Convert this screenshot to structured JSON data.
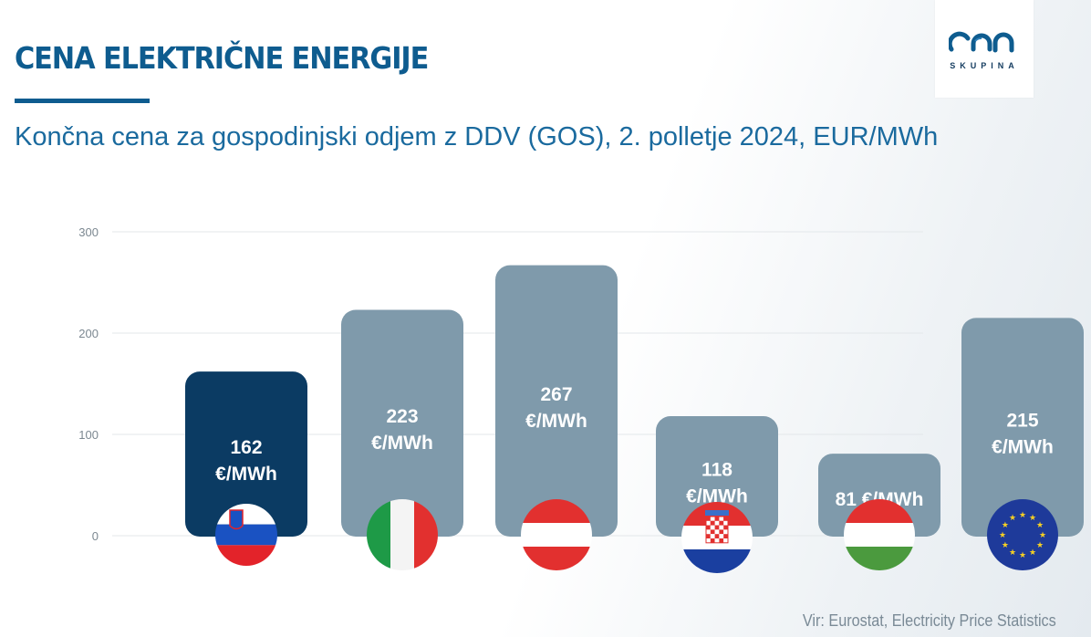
{
  "header": {
    "title": "CENA ELEKTRIČNE ENERGIJE",
    "subtitle": "Končna cena za gospodinjski odjem z DDV (GOS), 2. polletje 2024, EUR/MWh"
  },
  "logo": {
    "mark": "cen",
    "text": "SKUPINA",
    "color": "#0e5c8f"
  },
  "source": "Vir: Eurostat, Electricity Price Statistics",
  "colors": {
    "highlight_bar": "#0b3b63",
    "bar": "#7f9aab",
    "grid": "#e3e7ea",
    "tick": "#7c8891"
  },
  "chart_data": {
    "type": "bar",
    "categories": [
      "Slovenia",
      "Italy",
      "Austria",
      "Croatia",
      "Hungary",
      "EU"
    ],
    "values": [
      162,
      223,
      267,
      118,
      81,
      215
    ],
    "labels": [
      [
        "162",
        "€/MWh"
      ],
      [
        "223",
        "€/MWh"
      ],
      [
        "267",
        "€/MWh"
      ],
      [
        "118",
        "€/MWh"
      ],
      [
        "81 €/MWh"
      ],
      [
        "215",
        "€/MWh"
      ]
    ],
    "flag_icons": [
      "slovenia-flag-icon",
      "italy-flag-icon",
      "austria-flag-icon",
      "croatia-flag-icon",
      "hungary-flag-icon",
      "eu-flag-icon"
    ],
    "highlight_index": 0,
    "yticks": [
      0,
      100,
      200,
      300
    ],
    "ylim": [
      0,
      300
    ],
    "grid": true,
    "legend": "none",
    "title": "",
    "xlabel": "",
    "ylabel": ""
  }
}
